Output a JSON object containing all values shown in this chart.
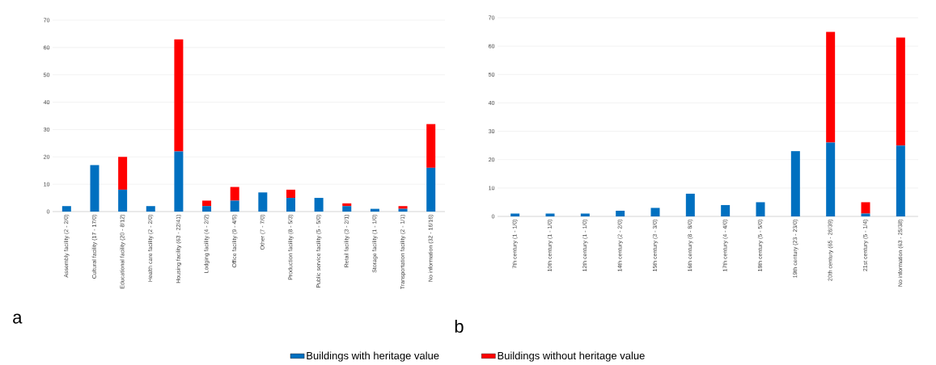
{
  "chart_data": [
    {
      "type": "bar",
      "stacked": true,
      "grid": "y",
      "legend": "bottom",
      "ylim": [
        0,
        70
      ],
      "yticks": [
        0,
        10,
        20,
        30,
        40,
        50,
        60,
        70
      ],
      "categories": [
        "Assembly facility (2 - 2/0)",
        "Cultural facility (17 - 17/0)",
        "Educational facility (20 - 8/12)",
        "Health care facility (2 - 2/0)",
        "Housing facility (63 - 22/41)",
        "Lodging facility (4 - 2/2)",
        "Office facility (9 - 4/5)",
        "Other (7 - 7/0)",
        "Production facility (8 - 5/3)",
        "Public service facility (5 - 5/0)",
        "Retail facility (3 - 2/1)",
        "Storage facility (1 - 1/0)",
        "Transportation facility (2 - 1/1)",
        "No information (32 - 16/16)"
      ],
      "series": [
        {
          "name": "Buildings with heritage value",
          "color": "#0070c0",
          "values": [
            2,
            17,
            8,
            2,
            22,
            2,
            4,
            7,
            5,
            5,
            2,
            1,
            1,
            16
          ]
        },
        {
          "name": "Buildings without heritage value",
          "color": "#ff0000",
          "values": [
            0,
            0,
            12,
            0,
            41,
            2,
            5,
            0,
            3,
            0,
            1,
            0,
            1,
            16
          ]
        }
      ],
      "annotations": [
        "a"
      ]
    },
    {
      "type": "bar",
      "stacked": true,
      "grid": "y",
      "ylim": [
        0,
        70
      ],
      "yticks": [
        0,
        10,
        20,
        30,
        40,
        50,
        60,
        70
      ],
      "categories": [
        "7th century (1 - 1/0)",
        "10th century (1 - 1/0)",
        "12th century (1 - 1/0)",
        "14th century (2 - 2/0)",
        "15th century (3 - 3/0)",
        "16th century (8 - 8/0)",
        "17th century (4 - 4/0)",
        "18th century (5 - 5/0)",
        "19th century (23 - 23/0)",
        "20th century (65 - 26/39)",
        "21st century (5 - 1/4)",
        "No information (63 - 25/38)"
      ],
      "series": [
        {
          "color": "#0070c0",
          "values": [
            1,
            1,
            1,
            2,
            3,
            8,
            4,
            5,
            23,
            26,
            1,
            25
          ]
        },
        {
          "color": "#ff0000",
          "values": [
            0,
            0,
            0,
            0,
            0,
            0,
            0,
            0,
            0,
            39,
            4,
            38
          ]
        }
      ],
      "annotations": [
        "b"
      ]
    }
  ]
}
